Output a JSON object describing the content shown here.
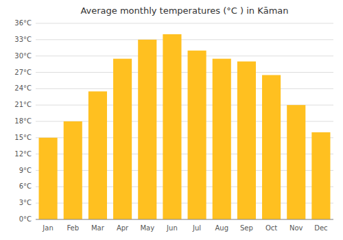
{
  "chart_data": {
    "type": "bar",
    "title": "Average monthly temperatures (°C ) in Kāman",
    "categories": [
      "Jan",
      "Feb",
      "Mar",
      "Apr",
      "May",
      "Jun",
      "Jul",
      "Aug",
      "Sep",
      "Oct",
      "Nov",
      "Dec"
    ],
    "values": [
      15,
      18,
      23.5,
      29.5,
      33,
      34,
      31,
      29.5,
      29,
      26.5,
      21,
      16
    ],
    "color": "#FFC020",
    "ylim": [
      0,
      36
    ],
    "yticks": [
      {
        "value": 0,
        "label": "0°C"
      },
      {
        "value": 3,
        "label": "3°C"
      },
      {
        "value": 6,
        "label": "6°C"
      },
      {
        "value": 9,
        "label": "9°C"
      },
      {
        "value": 12,
        "label": "12°C"
      },
      {
        "value": 15,
        "label": "15°C"
      },
      {
        "value": 18,
        "label": "18°C"
      },
      {
        "value": 21,
        "label": "21°C"
      },
      {
        "value": 24,
        "label": "24°C"
      },
      {
        "value": 27,
        "label": "27°C"
      },
      {
        "value": 30,
        "label": "30°C"
      },
      {
        "value": 33,
        "label": "33°C"
      },
      {
        "value": 36,
        "label": "36°C"
      }
    ],
    "grid": true
  }
}
